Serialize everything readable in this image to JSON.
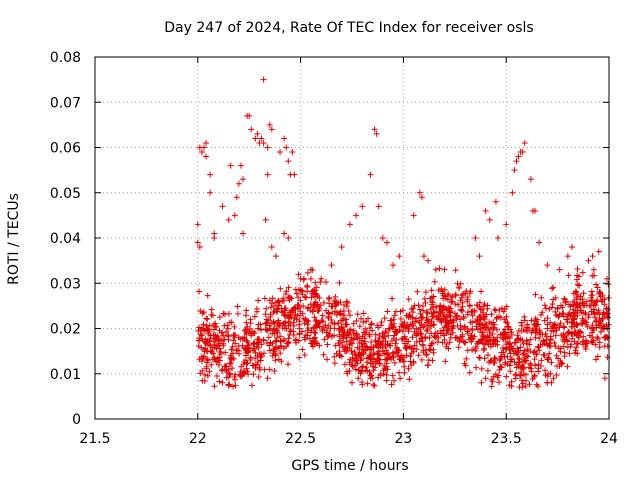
{
  "chart_data": {
    "type": "scatter",
    "title": "Day 247 of 2024, Rate Of TEC Index for receiver osls",
    "xlabel": "GPS time / hours",
    "ylabel": "ROTI / TECUs",
    "xlim": [
      21.5,
      24
    ],
    "ylim": [
      0,
      0.08
    ],
    "x_ticks": [
      21.5,
      22,
      22.5,
      23,
      23.5,
      24
    ],
    "x_tick_labels": [
      "21.5",
      "22",
      "22.5",
      "23",
      "23.5",
      "24"
    ],
    "y_ticks": [
      0,
      0.01,
      0.02,
      0.03,
      0.04,
      0.05,
      0.06,
      0.07,
      0.08
    ],
    "y_tick_labels": [
      "0",
      "0.01",
      "0.02",
      "0.03",
      "0.04",
      "0.05",
      "0.06",
      "0.07",
      "0.08"
    ],
    "grid": true,
    "marker": "+",
    "color": "#e00000",
    "series": [
      {
        "name": "ROTI",
        "points": [
          [
            22.0,
            0.043
          ],
          [
            22.0,
            0.039
          ],
          [
            22.01,
            0.038
          ],
          [
            22.01,
            0.06
          ],
          [
            22.02,
            0.059
          ],
          [
            22.03,
            0.06
          ],
          [
            22.04,
            0.061
          ],
          [
            22.04,
            0.058
          ],
          [
            22.06,
            0.054
          ],
          [
            22.06,
            0.05
          ],
          [
            22.08,
            0.041
          ],
          [
            22.08,
            0.04
          ],
          [
            22.12,
            0.047
          ],
          [
            22.15,
            0.044
          ],
          [
            22.16,
            0.056
          ],
          [
            22.18,
            0.045
          ],
          [
            22.19,
            0.049
          ],
          [
            22.2,
            0.052
          ],
          [
            22.21,
            0.056
          ],
          [
            22.22,
            0.053
          ],
          [
            22.22,
            0.041
          ],
          [
            22.24,
            0.067
          ],
          [
            22.25,
            0.067
          ],
          [
            22.26,
            0.064
          ],
          [
            22.28,
            0.062
          ],
          [
            22.29,
            0.063
          ],
          [
            22.3,
            0.061
          ],
          [
            22.31,
            0.062
          ],
          [
            22.32,
            0.061
          ],
          [
            22.32,
            0.075
          ],
          [
            22.34,
            0.06
          ],
          [
            22.35,
            0.065
          ],
          [
            22.36,
            0.064
          ],
          [
            22.34,
            0.054
          ],
          [
            22.33,
            0.044
          ],
          [
            22.36,
            0.038
          ],
          [
            22.38,
            0.036
          ],
          [
            22.4,
            0.059
          ],
          [
            22.42,
            0.062
          ],
          [
            22.43,
            0.06
          ],
          [
            22.44,
            0.057
          ],
          [
            22.45,
            0.054
          ],
          [
            22.46,
            0.059
          ],
          [
            22.47,
            0.054
          ],
          [
            22.42,
            0.041
          ],
          [
            22.44,
            0.04
          ],
          [
            22.5,
            0.031
          ],
          [
            22.55,
            0.033
          ],
          [
            22.6,
            0.031
          ],
          [
            22.65,
            0.034
          ],
          [
            22.7,
            0.038
          ],
          [
            22.74,
            0.043
          ],
          [
            22.77,
            0.045
          ],
          [
            22.8,
            0.047
          ],
          [
            22.84,
            0.054
          ],
          [
            22.86,
            0.064
          ],
          [
            22.87,
            0.063
          ],
          [
            22.88,
            0.047
          ],
          [
            22.9,
            0.04
          ],
          [
            22.92,
            0.039
          ],
          [
            22.95,
            0.034
          ],
          [
            22.98,
            0.036
          ],
          [
            23.05,
            0.045
          ],
          [
            23.08,
            0.05
          ],
          [
            23.09,
            0.049
          ],
          [
            23.1,
            0.036
          ],
          [
            23.12,
            0.035
          ],
          [
            23.2,
            0.033
          ],
          [
            23.27,
            0.029
          ],
          [
            23.35,
            0.04
          ],
          [
            23.37,
            0.036
          ],
          [
            23.4,
            0.046
          ],
          [
            23.42,
            0.044
          ],
          [
            23.45,
            0.048
          ],
          [
            23.46,
            0.04
          ],
          [
            23.5,
            0.043
          ],
          [
            23.53,
            0.05
          ],
          [
            23.54,
            0.055
          ],
          [
            23.55,
            0.057
          ],
          [
            23.56,
            0.058
          ],
          [
            23.57,
            0.059
          ],
          [
            23.58,
            0.059
          ],
          [
            23.59,
            0.061
          ],
          [
            23.62,
            0.053
          ],
          [
            23.63,
            0.046
          ],
          [
            23.64,
            0.046
          ],
          [
            23.66,
            0.039
          ],
          [
            23.7,
            0.034
          ],
          [
            23.76,
            0.033
          ],
          [
            23.8,
            0.036
          ],
          [
            23.82,
            0.038
          ],
          [
            23.9,
            0.035
          ],
          [
            23.92,
            0.036
          ],
          [
            23.95,
            0.037
          ],
          [
            23.99,
            0.031
          ],
          [
            23.7,
            0.008
          ],
          [
            23.72,
            0.008
          ],
          [
            23.73,
            0.009
          ],
          [
            22.12,
            0.008
          ],
          [
            22.75,
            0.008
          ],
          [
            22.78,
            0.009
          ],
          [
            23.38,
            0.008
          ],
          [
            23.4,
            0.009
          ],
          [
            23.98,
            0.009
          ],
          [
            22.34,
            0.009
          ]
        ]
      }
    ]
  }
}
